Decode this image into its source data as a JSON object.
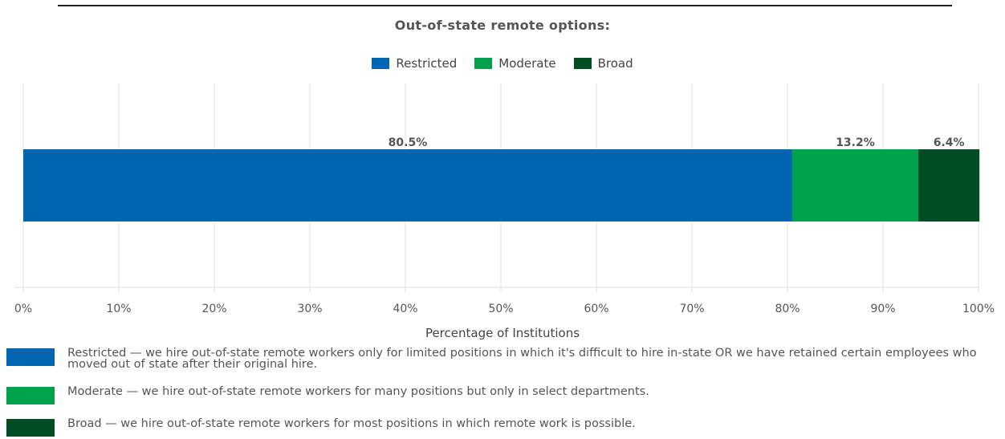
{
  "chart_data": {
    "type": "bar",
    "orientation": "horizontal",
    "stacked": true,
    "title": "Out-of-state remote options:",
    "xlabel": "Percentage of Institutions",
    "xlim": [
      0,
      100
    ],
    "x_ticks": [
      "0%",
      "10%",
      "20%",
      "30%",
      "40%",
      "50%",
      "60%",
      "70%",
      "80%",
      "90%",
      "100%"
    ],
    "grid": true,
    "legend_position": "top-center",
    "series": [
      {
        "name": "Restricted",
        "value": 80.5,
        "label": "80.5%",
        "color": "#0066b3"
      },
      {
        "name": "Moderate",
        "value": 13.2,
        "label": "13.2%",
        "color": "#00a14b"
      },
      {
        "name": "Broad",
        "value": 6.4,
        "label": "6.4%",
        "color": "#004d24"
      }
    ]
  },
  "definitions": [
    {
      "color": "#0066b3",
      "text": "Restricted — we hire out-of-state remote workers only for limited positions in which it's difficult to hire in-state OR we have retained certain employees who moved out of state after their original hire."
    },
    {
      "color": "#00a14b",
      "text": "Moderate — we hire out-of-state remote workers for many positions but only in select departments."
    },
    {
      "color": "#004d24",
      "text": "Broad — we hire out-of-state remote workers for most positions in which remote work is possible."
    }
  ]
}
